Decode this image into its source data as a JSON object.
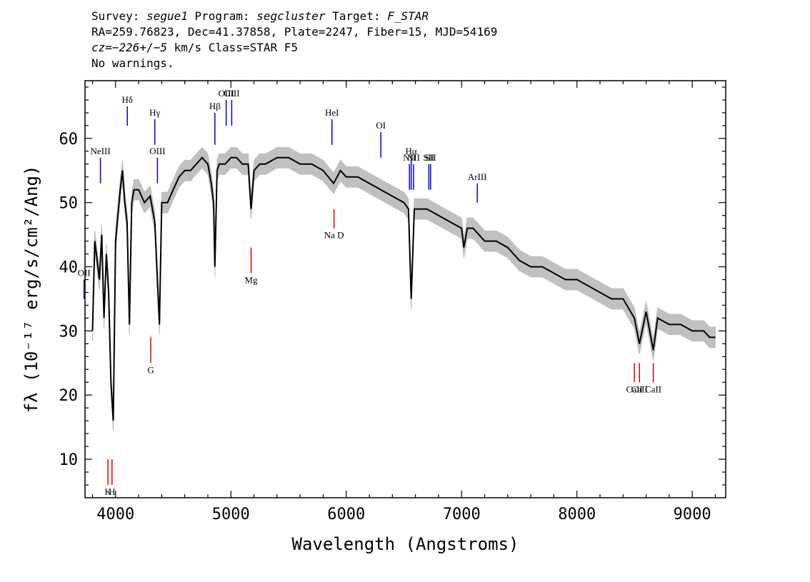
{
  "header": {
    "line1": [
      {
        "t": "Survey: ",
        "i": false
      },
      {
        "t": "segue1",
        "i": true
      },
      {
        "t": " Program: ",
        "i": false
      },
      {
        "t": "segcluster",
        "i": true
      },
      {
        "t": " Target: ",
        "i": false
      },
      {
        "t": "F_STAR",
        "i": true
      }
    ],
    "line2": [
      {
        "t": "RA=259.76823, Dec=41.37858, Plate=2247, Fiber=15, MJD=54169",
        "i": false
      }
    ],
    "line3": [
      {
        "t": "cz=",
        "i": true
      },
      {
        "t": "−226+/−5",
        "i": true
      },
      {
        "t": " km/s Class=STAR F5",
        "i": false
      }
    ],
    "line4": [
      {
        "t": "No warnings.",
        "i": false
      }
    ]
  },
  "chart_data": {
    "type": "line",
    "title": "",
    "xlabel": "Wavelength (Angstroms)",
    "ylabel": "fλ (10⁻¹⁷ erg/s/cm²/Ang)",
    "xlim": [
      3735,
      9290
    ],
    "ylim": [
      4,
      69
    ],
    "xticks": [
      4000,
      5000,
      6000,
      7000,
      8000,
      9000
    ],
    "yticks": [
      10,
      20,
      30,
      40,
      50,
      60
    ],
    "grid": false,
    "colors": {
      "spectrum": "#000000",
      "noise": "#c0c0c0",
      "emission": "#0000cc",
      "absorption": "#dd0000"
    },
    "series": [
      {
        "x": [
          3800,
          3820,
          3840,
          3860,
          3880,
          3900,
          3920,
          3940,
          3960,
          3980,
          4000,
          4020,
          4040,
          4060,
          4080,
          4100,
          4120,
          4140,
          4160,
          4200,
          4250,
          4300,
          4340,
          4380,
          4400,
          4450,
          4500,
          4550,
          4600,
          4650,
          4700,
          4750,
          4800,
          4830,
          4850,
          4861,
          4880,
          4900,
          4950,
          5000,
          5050,
          5100,
          5150,
          5175,
          5200,
          5250,
          5300,
          5400,
          5500,
          5600,
          5700,
          5800,
          5890,
          5950,
          6000,
          6100,
          6200,
          6300,
          6400,
          6500,
          6540,
          6563,
          6590,
          6650,
          6700,
          6800,
          6900,
          7000,
          7020,
          7050,
          7100,
          7200,
          7300,
          7400,
          7500,
          7600,
          7700,
          7800,
          7900,
          8000,
          8100,
          8200,
          8300,
          8400,
          8498,
          8542,
          8600,
          8662,
          8700,
          8800,
          8900,
          9000,
          9100,
          9150,
          9200
        ],
        "y": [
          30,
          44,
          41,
          38,
          45,
          32,
          42,
          36,
          22,
          16,
          44,
          48,
          52,
          55,
          50,
          47,
          31,
          50,
          52,
          52,
          50,
          51,
          47,
          31,
          50,
          50,
          52,
          54,
          55,
          55,
          56,
          57,
          56,
          53,
          50,
          40,
          55,
          56,
          56,
          57,
          57,
          56,
          56,
          49,
          55,
          56,
          56,
          57,
          57,
          56,
          56,
          55,
          53,
          55,
          54,
          54,
          53,
          52,
          51,
          50,
          49,
          35,
          49,
          49,
          49,
          48,
          47,
          46,
          43,
          46,
          46,
          44,
          44,
          43,
          41,
          40,
          40,
          39,
          38,
          38,
          37,
          36,
          35,
          35,
          32,
          28,
          33,
          27,
          32,
          31,
          31,
          30,
          30,
          29,
          29
        ]
      }
    ],
    "noise_band": 1.6,
    "emission_lines": [
      {
        "label": "NeIII",
        "x": 3869,
        "y1": 53,
        "y2": 57
      },
      {
        "label": "OII",
        "x": 3727,
        "y1": 35,
        "y2": 38
      },
      {
        "label": "Hδ",
        "x": 4102,
        "y1": 62,
        "y2": 65
      },
      {
        "label": "Hγ",
        "x": 4340,
        "y1": 59,
        "y2": 63
      },
      {
        "label": "OIII",
        "x": 4363,
        "y1": 53,
        "y2": 57
      },
      {
        "label": "Hβ",
        "x": 4861,
        "y1": 59,
        "y2": 64
      },
      {
        "label": "OIII",
        "x": 4959,
        "y1": 62,
        "y2": 66
      },
      {
        "label": "OIII",
        "x": 5007,
        "y1": 62,
        "y2": 66
      },
      {
        "label": "HeI",
        "x": 5876,
        "y1": 59,
        "y2": 63
      },
      {
        "label": "OI",
        "x": 6300,
        "y1": 57,
        "y2": 61
      },
      {
        "label": "NII",
        "x": 6548,
        "y1": 52,
        "y2": 56
      },
      {
        "label": "Hα",
        "x": 6563,
        "y1": 52,
        "y2": 57
      },
      {
        "label": "NII",
        "x": 6583,
        "y1": 52,
        "y2": 56
      },
      {
        "label": "SII",
        "x": 6716,
        "y1": 52,
        "y2": 56
      },
      {
        "label": "SII",
        "x": 6731,
        "y1": 52,
        "y2": 56
      },
      {
        "label": "ArIII",
        "x": 7136,
        "y1": 50,
        "y2": 53
      }
    ],
    "absorption_lines": [
      {
        "label": "K",
        "x": 3934,
        "y1": 6,
        "y2": 10
      },
      {
        "label": "H",
        "x": 3969,
        "y1": 6,
        "y2": 10
      },
      {
        "label": "G",
        "x": 4305,
        "y1": 25,
        "y2": 29
      },
      {
        "label": "Mg",
        "x": 5175,
        "y1": 39,
        "y2": 43
      },
      {
        "label": "Na D",
        "x": 5894,
        "y1": 46,
        "y2": 49
      },
      {
        "label": "CaII",
        "x": 8498,
        "y1": 22,
        "y2": 25
      },
      {
        "label": "CaII",
        "x": 8542,
        "y1": 22,
        "y2": 25
      },
      {
        "label": "CaII",
        "x": 8662,
        "y1": 22,
        "y2": 25
      }
    ]
  }
}
